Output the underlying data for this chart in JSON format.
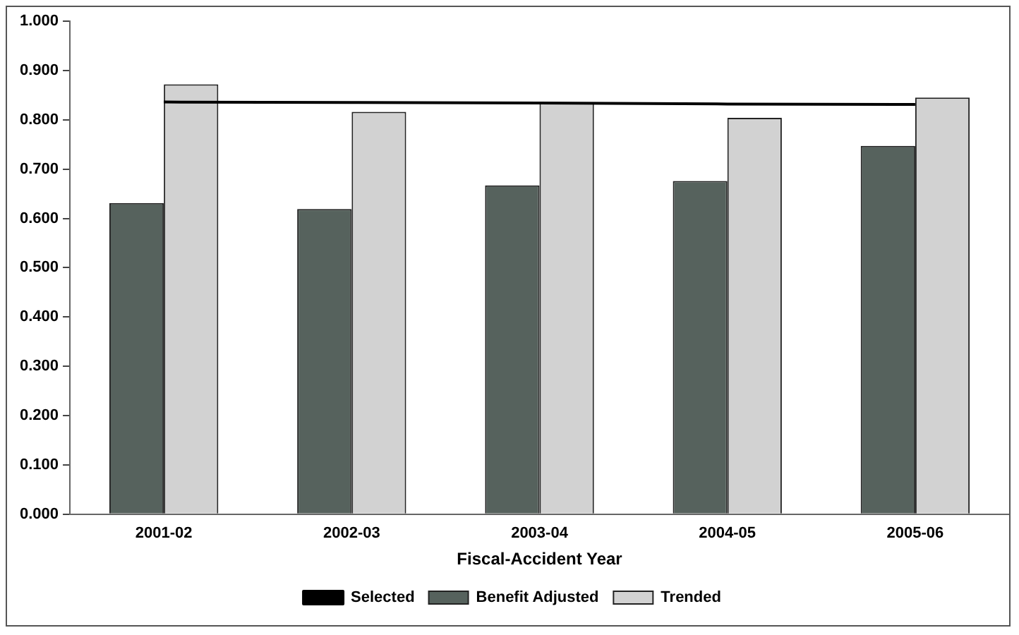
{
  "chart_data": {
    "type": "bar",
    "xlabel": "Fiscal-Accident Year",
    "categories": [
      "2001-02",
      "2002-03",
      "2003-04",
      "2004-05",
      "2005-06"
    ],
    "series": [
      {
        "name": "Benefit Adjusted",
        "color": "#56625d",
        "values": [
          0.631,
          0.619,
          0.667,
          0.676,
          0.747
        ]
      },
      {
        "name": "Trended",
        "color": "#d2d2d2",
        "values": [
          0.872,
          0.816,
          0.835,
          0.804,
          0.845
        ]
      },
      {
        "name": "Selected",
        "type": "line",
        "color": "#000000",
        "values": [
          0.836,
          0.835,
          0.834,
          0.832,
          0.831
        ]
      }
    ],
    "ylim": [
      0,
      1
    ],
    "yticks": [
      {
        "value": 0,
        "label": "0.000"
      },
      {
        "value": 0.1,
        "label": "0.100"
      },
      {
        "value": 0.2,
        "label": "0.200"
      },
      {
        "value": 0.3,
        "label": "0.300"
      },
      {
        "value": 0.4,
        "label": "0.400"
      },
      {
        "value": 0.5,
        "label": "0.500"
      },
      {
        "value": 0.6,
        "label": "0.600"
      },
      {
        "value": 0.7,
        "label": "0.700"
      },
      {
        "value": 0.8,
        "label": "0.800"
      },
      {
        "value": 0.9,
        "label": "0.900"
      },
      {
        "value": 1,
        "label": "1.000"
      }
    ],
    "grid": false,
    "legend": "bottom",
    "marker": "none",
    "line_style": "solid"
  }
}
